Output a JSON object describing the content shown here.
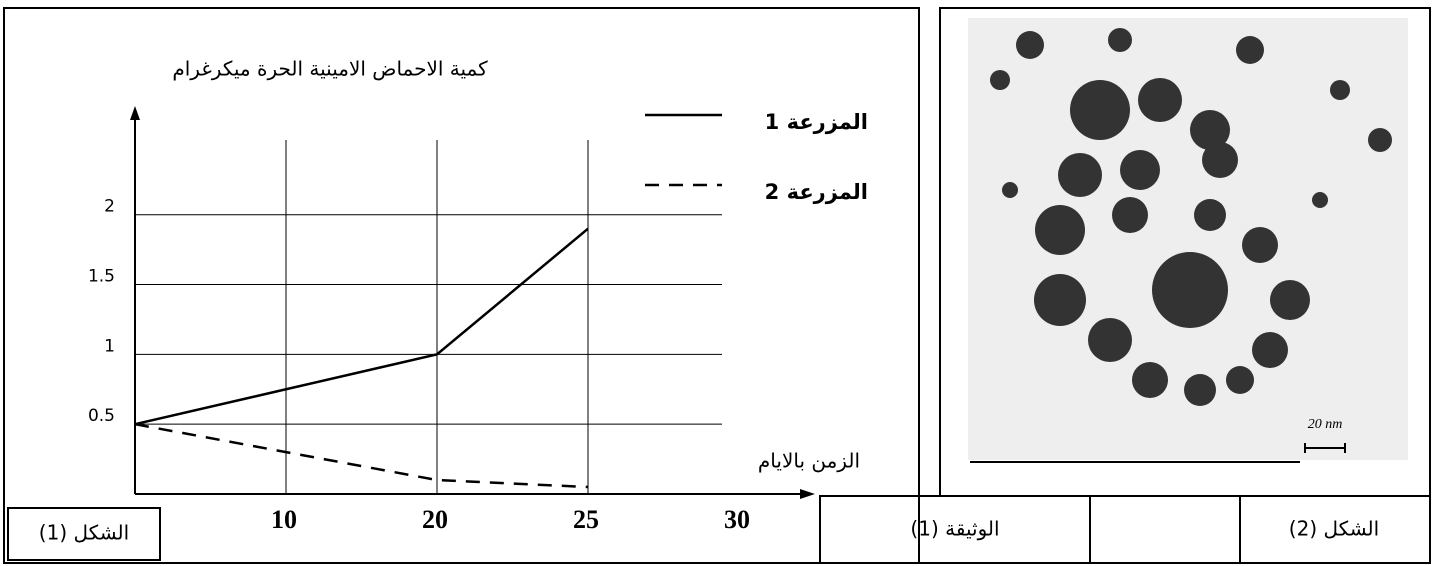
{
  "chart_data": {
    "type": "line",
    "y_label": "كمية الاحماض الامينية الحرة ميكرغرام",
    "x_label": "الزمن بالايام",
    "categories": [
      null,
      "10",
      "20",
      "25",
      "30"
    ],
    "series": [
      {
        "name": "المزرعة 1",
        "color": "#000000",
        "linestyle": "solid",
        "values": [
          0.5,
          0.75,
          1,
          1.9,
          null
        ]
      },
      {
        "name": "المزرعة 2",
        "color": "#000000",
        "linestyle": "dashed",
        "values": [
          0.5,
          0.3,
          0.1,
          0.05,
          null
        ]
      }
    ],
    "ylim": [
      0,
      2.75
    ],
    "yticks": [
      0.5,
      1,
      1.5,
      2
    ],
    "grid": true
  },
  "figure_labels": {
    "figure1": "الشكل (1)",
    "document": "الوثيقة (1)",
    "figure2": "الشكل (2)"
  },
  "image": {
    "scale_label": "20 nm"
  }
}
